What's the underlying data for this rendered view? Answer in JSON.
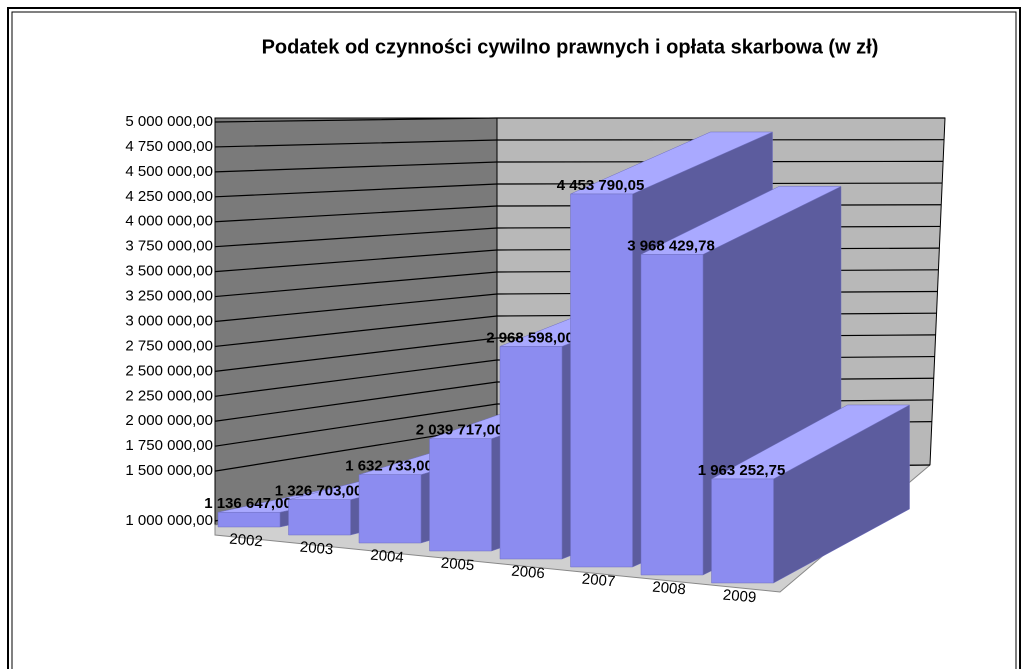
{
  "chart_data": {
    "type": "bar3d",
    "title": "Podatek od czynności cywilno prawnych i opłata skarbowa (w zł)",
    "categories": [
      "2002",
      "2003",
      "2004",
      "2005",
      "2006",
      "2007",
      "2008",
      "2009"
    ],
    "values": [
      1136647.0,
      1326703.0,
      1632733.0,
      2039717.0,
      2968598.0,
      4453790.05,
      3968429.78,
      1963252.75
    ],
    "value_labels": [
      "1 136 647,00",
      "1 326 703,00",
      "1 632 733,00",
      "2 039 717,00",
      "2 968 598,00",
      "4 453 790,05",
      "3 968 429,78",
      "1 963 252,75"
    ],
    "color": "#8c8cf0",
    "ylim": [
      1000000,
      5000000
    ],
    "yticks": [
      {
        "value": 1000000,
        "label": "1 000 000,00"
      },
      {
        "value": 1500000,
        "label": "1 500 000,00"
      },
      {
        "value": 1750000,
        "label": "1 750 000,00"
      },
      {
        "value": 2000000,
        "label": "2 000 000,00"
      },
      {
        "value": 2250000,
        "label": "2 250 000,00"
      },
      {
        "value": 2500000,
        "label": "2 500 000,00"
      },
      {
        "value": 2750000,
        "label": "2 750 000,00"
      },
      {
        "value": 3000000,
        "label": "3 000 000,00"
      },
      {
        "value": 3250000,
        "label": "3 250 000,00"
      },
      {
        "value": 3500000,
        "label": "3 500 000,00"
      },
      {
        "value": 3750000,
        "label": "3 750 000,00"
      },
      {
        "value": 4000000,
        "label": "4 000 000,00"
      },
      {
        "value": 4250000,
        "label": "4 250 000,00"
      },
      {
        "value": 4500000,
        "label": "4 500 000,00"
      },
      {
        "value": 4750000,
        "label": "4 750 000,00"
      },
      {
        "value": 5000000,
        "label": "5 000 000,00"
      }
    ],
    "grid": true
  }
}
